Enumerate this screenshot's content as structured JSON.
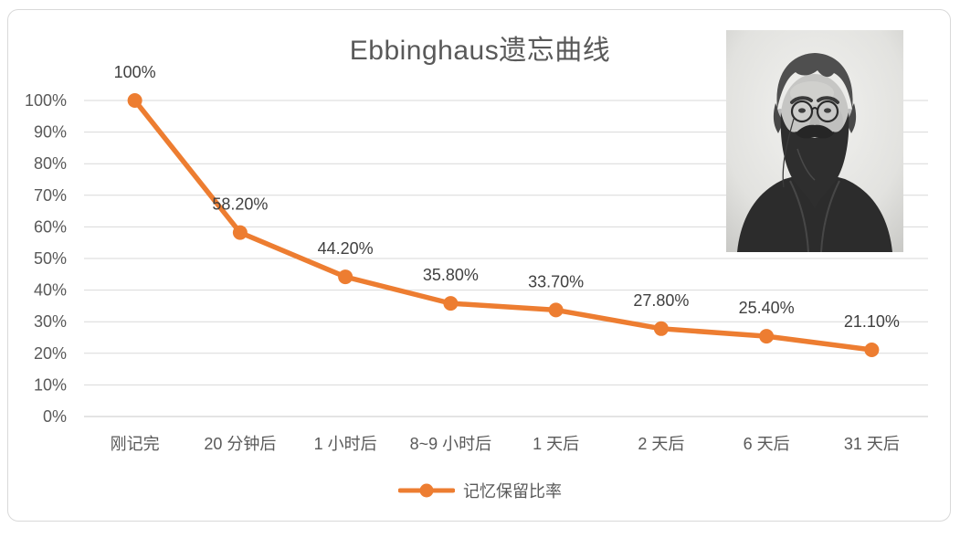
{
  "chart_data": {
    "type": "line",
    "title": "Ebbinghaus遗忘曲线",
    "categories": [
      "刚记完",
      "20 分钟后",
      "1 小时后",
      "8~9 小时后",
      "1 天后",
      "2 天后",
      "6 天后",
      "31 天后"
    ],
    "series": [
      {
        "name": "记忆保留比率",
        "values": [
          100,
          58.2,
          44.2,
          35.8,
          33.7,
          27.8,
          25.4,
          21.1
        ]
      }
    ],
    "data_labels": [
      "100%",
      "58.20%",
      "44.20%",
      "35.80%",
      "33.70%",
      "27.80%",
      "25.40%",
      "21.10%"
    ],
    "y_ticks": [
      "100%",
      "90%",
      "80%",
      "70%",
      "60%",
      "50%",
      "40%",
      "30%",
      "20%",
      "10%",
      "0%"
    ],
    "ylim": [
      0,
      100
    ],
    "grid": true,
    "legend_position": "bottom",
    "colors": {
      "line": "#ED7D31",
      "gridline": "#D9D9D9",
      "axis_line": "#C9C9C9",
      "tick_label": "#595959",
      "data_label": "#404040",
      "title": "#595959",
      "frame_border": "#D9D9D9"
    }
  },
  "portrait": {
    "name": "hermann-ebbinghaus-portrait"
  }
}
